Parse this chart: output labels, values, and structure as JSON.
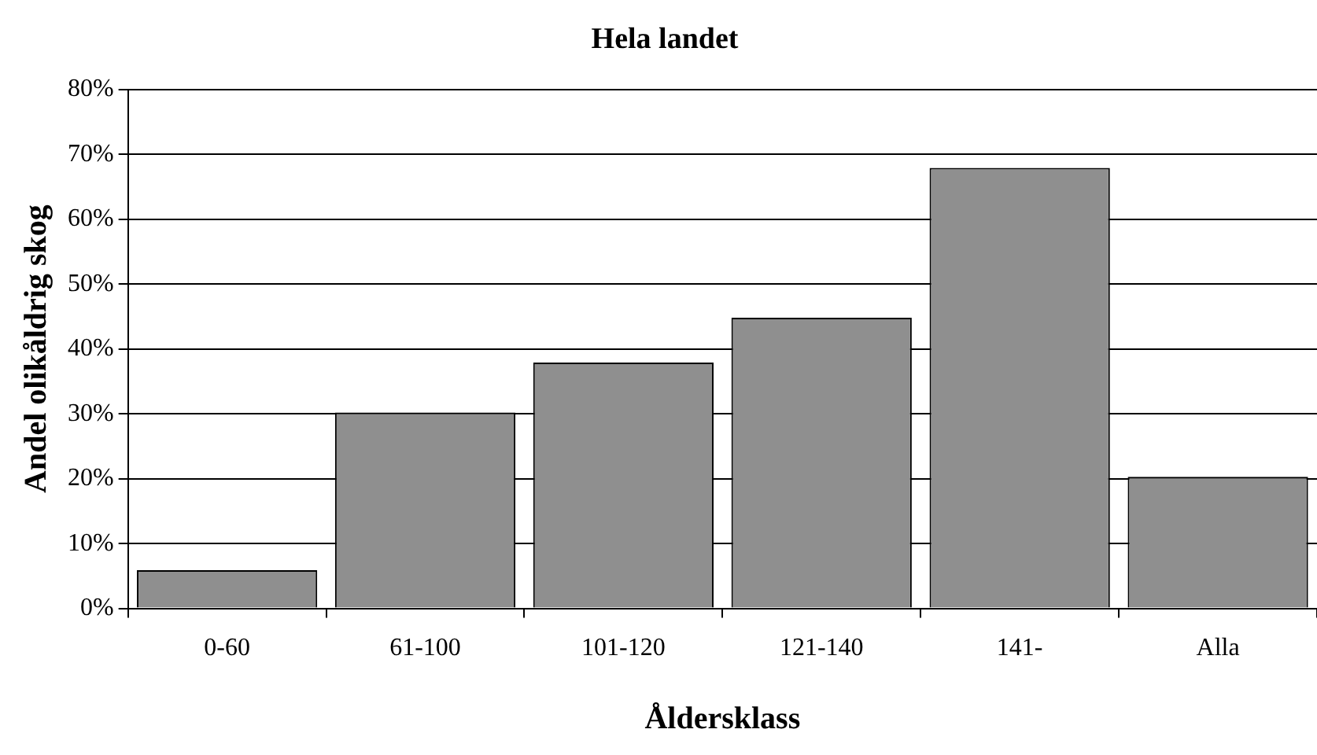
{
  "chart_data": {
    "type": "bar",
    "title": "Hela landet",
    "xlabel": "Åldersklass",
    "ylabel": "Andel olikåldrig skog",
    "categories": [
      "0-60",
      "61-100",
      "101-120",
      "121-140",
      "141-",
      "Alla"
    ],
    "values": [
      0.059,
      0.302,
      0.379,
      0.448,
      0.679,
      0.203
    ],
    "color": "#8f8f8f",
    "ylim": [
      0,
      0.8
    ],
    "yticks": [
      {
        "value": 0,
        "label": "0%"
      },
      {
        "value": 0.1,
        "label": "10%"
      },
      {
        "value": 0.2,
        "label": "20%"
      },
      {
        "value": 0.3,
        "label": "30%"
      },
      {
        "value": 0.4,
        "label": "40%"
      },
      {
        "value": 0.5,
        "label": "50%"
      },
      {
        "value": 0.6,
        "label": "60%"
      },
      {
        "value": 0.7,
        "label": "70%"
      },
      {
        "value": 0.8,
        "label": "80%"
      }
    ],
    "grid": "y",
    "legend": false
  }
}
